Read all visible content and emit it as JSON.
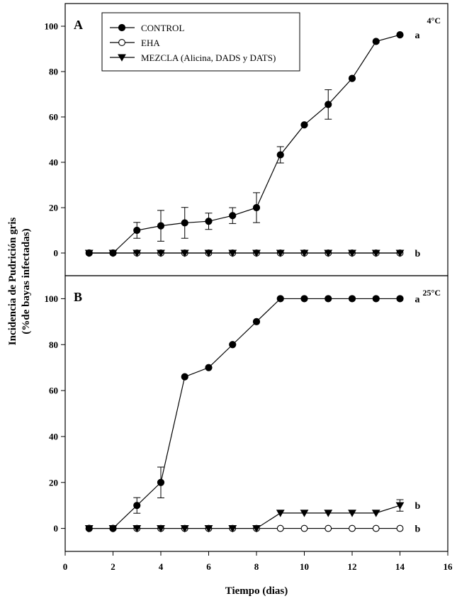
{
  "chart_data": {
    "type": "line",
    "ylabel_line1": "Incidencia de Pudrición gris",
    "ylabel_line2": "(%de bayas infectadas)",
    "xlabel": "Tiempo (dias)",
    "xlim": [
      0,
      16
    ],
    "xticks": [
      0,
      2,
      4,
      6,
      8,
      10,
      12,
      14,
      16
    ],
    "ylim": [
      -10,
      110
    ],
    "yticks": [
      0,
      20,
      40,
      60,
      80,
      100
    ],
    "legend_placement": "top-left",
    "legend": [
      {
        "name": "CONTROL",
        "marker": "filled-circle"
      },
      {
        "name": "EHA",
        "marker": "open-circle"
      },
      {
        "name": "MEZCLA (Alicina, DADS y DATS)",
        "marker": "filled-triangle-down"
      }
    ],
    "panels": [
      {
        "label": "A",
        "temperature": "4°C",
        "series": [
          {
            "name": "CONTROL",
            "x": [
              1,
              2,
              3,
              4,
              5,
              6,
              7,
              8,
              9,
              10,
              11,
              12,
              13,
              14
            ],
            "y": [
              0,
              0,
              10,
              12,
              13.3,
              14,
              16.5,
              20,
              43.3,
              56.5,
              65.5,
              77,
              93.3,
              96.2
            ],
            "err": [
              0,
              0,
              3.5,
              6.8,
              6.8,
              3.6,
              3.5,
              6.6,
              3.6,
              0,
              6.5,
              0,
              0,
              0
            ],
            "sig": "a"
          },
          {
            "name": "EHA",
            "x": [
              1,
              2,
              3,
              4,
              5,
              6,
              7,
              8,
              9,
              10,
              11,
              12,
              13,
              14
            ],
            "y": [
              0,
              0,
              0,
              0,
              0,
              0,
              0,
              0,
              0,
              0,
              0,
              0,
              0,
              0
            ],
            "err": [
              0,
              0,
              0,
              0,
              0,
              0,
              0,
              0,
              0,
              0,
              0,
              0,
              0,
              0
            ]
          },
          {
            "name": "MEZCLA (Alicina, DADS y DATS)",
            "x": [
              1,
              2,
              3,
              4,
              5,
              6,
              7,
              8,
              9,
              10,
              11,
              12,
              13,
              14
            ],
            "y": [
              0,
              0,
              0,
              0,
              0,
              0,
              0,
              0,
              0,
              0,
              0,
              0,
              0,
              0
            ],
            "err": [
              0,
              0,
              0,
              0,
              0,
              0,
              0,
              0,
              0,
              0,
              0,
              0,
              0,
              0
            ],
            "sig": "b"
          }
        ]
      },
      {
        "label": "B",
        "temperature": "25°C",
        "series": [
          {
            "name": "CONTROL",
            "x": [
              1,
              2,
              3,
              4,
              5,
              6,
              7,
              8,
              9,
              10,
              11,
              12,
              13,
              14
            ],
            "y": [
              0,
              0,
              10,
              20,
              66,
              70,
              80,
              90,
              100,
              100,
              100,
              100,
              100,
              100
            ],
            "err": [
              0,
              0,
              3.4,
              6.7,
              0,
              0,
              0,
              0,
              0,
              0,
              0,
              0,
              0,
              0
            ],
            "sig": "a"
          },
          {
            "name": "EHA",
            "x": [
              1,
              2,
              3,
              4,
              5,
              6,
              7,
              8,
              9,
              10,
              11,
              12,
              13,
              14
            ],
            "y": [
              0,
              0,
              0,
              0,
              0,
              0,
              0,
              0,
              0,
              0,
              0,
              0,
              0,
              0
            ],
            "err": [
              0,
              0,
              0,
              0,
              0,
              0,
              0,
              0,
              0,
              0,
              0,
              0,
              0,
              0
            ],
            "sig": "b"
          },
          {
            "name": "MEZCLA (Alicina, DADS y DATS)",
            "x": [
              1,
              2,
              3,
              4,
              5,
              6,
              7,
              8,
              9,
              10,
              11,
              12,
              13,
              14
            ],
            "y": [
              0,
              0,
              0,
              0,
              0,
              0,
              0,
              0,
              6.7,
              6.7,
              6.7,
              6.7,
              6.7,
              10
            ],
            "err": [
              0,
              0,
              0,
              0,
              0,
              0,
              0,
              0,
              0,
              0,
              0,
              0,
              0,
              2.5
            ],
            "sig": "b"
          }
        ]
      }
    ]
  }
}
